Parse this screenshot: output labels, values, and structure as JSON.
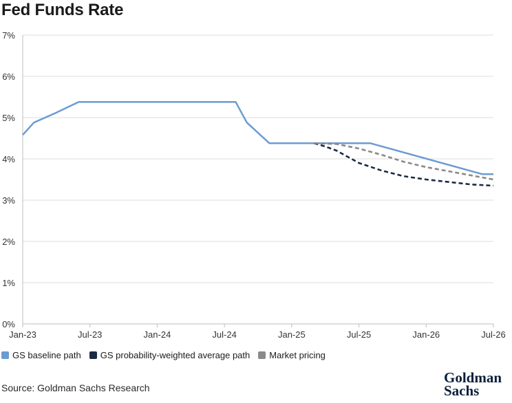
{
  "chart_data": {
    "type": "line",
    "title": "Fed Funds Rate",
    "x_tick_labels": [
      "Jan-23",
      "Jul-23",
      "Jan-24",
      "Jul-24",
      "Jan-25",
      "Jul-25",
      "Jan-26",
      "Jul-26"
    ],
    "y_tick_labels": [
      "0%",
      "1%",
      "2%",
      "3%",
      "4%",
      "5%",
      "6%",
      "7%"
    ],
    "xlim": [
      "2023-01",
      "2026-07"
    ],
    "ylim": [
      0,
      7
    ],
    "grid": "horizontal",
    "legend_position": "bottom-left",
    "series": [
      {
        "name": "GS baseline path",
        "color": "#6b9bd2",
        "style": "solid",
        "points": [
          [
            "2023-01",
            4.58
          ],
          [
            "2023-02",
            4.88
          ],
          [
            "2023-03",
            5.0
          ],
          [
            "2023-04",
            5.12
          ],
          [
            "2023-05",
            5.25
          ],
          [
            "2023-06",
            5.38
          ],
          [
            "2023-07",
            5.38
          ],
          [
            "2024-08",
            5.38
          ],
          [
            "2024-09",
            4.88
          ],
          [
            "2024-10",
            4.63
          ],
          [
            "2024-11",
            4.38
          ],
          [
            "2025-06",
            4.38
          ],
          [
            "2025-07",
            4.38
          ],
          [
            "2025-08",
            4.38
          ],
          [
            "2026-06",
            3.63
          ],
          [
            "2026-07",
            3.63
          ]
        ]
      },
      {
        "name": "GS probability-weighted average path",
        "color": "#1b2a44",
        "style": "dashed",
        "points": [
          [
            "2025-03",
            4.38
          ],
          [
            "2025-04",
            4.3
          ],
          [
            "2025-05",
            4.2
          ],
          [
            "2025-06",
            4.05
          ],
          [
            "2025-07",
            3.9
          ],
          [
            "2025-09",
            3.72
          ],
          [
            "2025-11",
            3.58
          ],
          [
            "2026-01",
            3.5
          ],
          [
            "2026-03",
            3.44
          ],
          [
            "2026-05",
            3.38
          ],
          [
            "2026-07",
            3.35
          ]
        ]
      },
      {
        "name": "Market pricing",
        "color": "#8a8a8a",
        "style": "dashed",
        "points": [
          [
            "2025-03",
            4.38
          ],
          [
            "2025-05",
            4.36
          ],
          [
            "2025-07",
            4.25
          ],
          [
            "2025-09",
            4.1
          ],
          [
            "2025-11",
            3.93
          ],
          [
            "2026-01",
            3.8
          ],
          [
            "2026-03",
            3.7
          ],
          [
            "2026-05",
            3.6
          ],
          [
            "2026-07",
            3.5
          ]
        ]
      }
    ]
  },
  "legend": [
    {
      "label": "GS baseline path",
      "color": "#6b9bd2"
    },
    {
      "label": "GS probability-weighted average path",
      "color": "#1b2a44"
    },
    {
      "label": "Market pricing",
      "color": "#8a8a8a"
    }
  ],
  "source": "Source: Goldman Sachs Research",
  "logo": {
    "line1": "Goldman",
    "line2": "Sachs"
  }
}
